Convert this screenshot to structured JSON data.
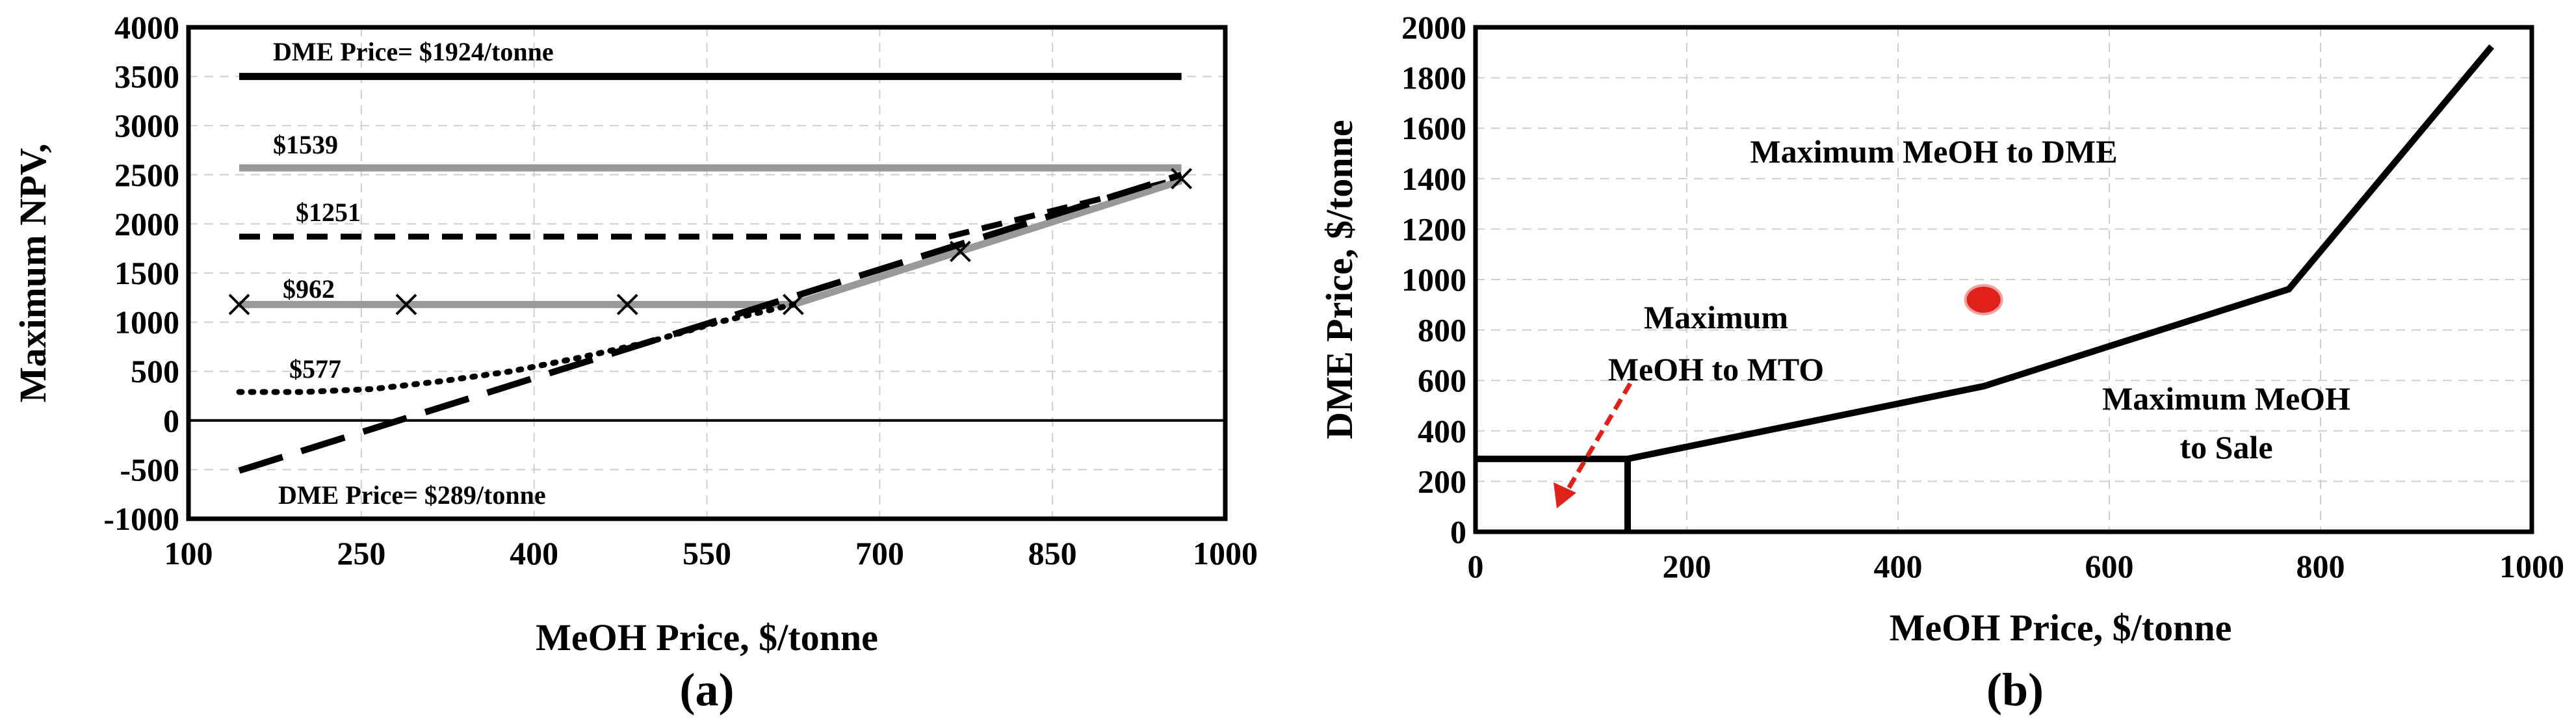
{
  "chart_data": [
    {
      "type": "line",
      "panel_label": "(a)",
      "xlabel": "MeOH Price, $/tonne",
      "ylabel": "Maximum NPV,",
      "xlim": [
        100,
        1000
      ],
      "ylim": [
        -1000,
        4000
      ],
      "xticks": [
        100,
        250,
        400,
        550,
        700,
        850,
        1000
      ],
      "yticks": [
        -1000,
        -500,
        0,
        500,
        1000,
        1500,
        2000,
        2500,
        3000,
        3500,
        4000
      ],
      "grid": true,
      "series": [
        {
          "name": "DME Price= $1924/tonne",
          "style": "solid",
          "color": "#000000",
          "points": [
            [
              144,
              3500
            ],
            [
              962,
              3500
            ]
          ]
        },
        {
          "name": "$1539",
          "style": "solid",
          "color": "#999999",
          "points": [
            [
              144,
              2570
            ],
            [
              962,
              2570
            ]
          ]
        },
        {
          "name": "$1251",
          "style": "dashed",
          "color": "#000000",
          "points": [
            [
              144,
              1870
            ],
            [
              760,
              1870
            ],
            [
              962,
              2460
            ]
          ]
        },
        {
          "name": "$962",
          "style": "solid",
          "color": "#999999",
          "points": [
            [
              144,
              1180
            ],
            [
              625,
              1180
            ],
            [
              962,
              2440
            ]
          ]
        },
        {
          "name": "$577",
          "style": "dotted",
          "color": "#000000",
          "points": [
            [
              144,
              290
            ],
            [
              200,
              290
            ],
            [
              260,
              320
            ],
            [
              320,
              400
            ],
            [
              380,
              500
            ],
            [
              440,
              640
            ],
            [
              500,
              800
            ],
            [
              560,
              1000
            ],
            [
              625,
              1180
            ]
          ]
        },
        {
          "name": "DME Price= $289/tonne",
          "style": "longdash",
          "color": "#000000",
          "points": [
            [
              144,
              -510
            ],
            [
              962,
              2500
            ]
          ]
        }
      ],
      "markers": {
        "symbol": "x",
        "points": [
          [
            144,
            1180
          ],
          [
            289,
            1180
          ],
          [
            481,
            1180
          ],
          [
            625,
            1180
          ],
          [
            770,
            1720
          ],
          [
            962,
            2460
          ]
        ]
      }
    },
    {
      "type": "line",
      "panel_label": "(b)",
      "xlabel": "MeOH Price, $/tonne",
      "ylabel": "DME Price, $/tonne",
      "xlim": [
        0,
        1000
      ],
      "ylim": [
        0,
        2000
      ],
      "xticks": [
        0,
        200,
        400,
        600,
        800,
        1000
      ],
      "yticks": [
        0,
        200,
        400,
        600,
        800,
        1000,
        1200,
        1400,
        1600,
        1800,
        2000
      ],
      "grid": true,
      "boundary": [
        [
          0,
          289
        ],
        [
          144,
          289
        ],
        [
          144,
          0
        ]
      ],
      "boundary_line": [
        [
          144,
          289
        ],
        [
          481,
          577
        ],
        [
          770,
          962
        ],
        [
          962,
          1924
        ]
      ],
      "point": {
        "x": 481,
        "y": 920,
        "color": "#e0201a"
      },
      "regions": [
        {
          "lines": [
            "Maximum MeOH to DME"
          ]
        },
        {
          "lines": [
            "Maximum",
            "MeOH to MTO"
          ]
        },
        {
          "lines": [
            "Maximum MeOH",
            "to Sale"
          ]
        }
      ]
    }
  ]
}
